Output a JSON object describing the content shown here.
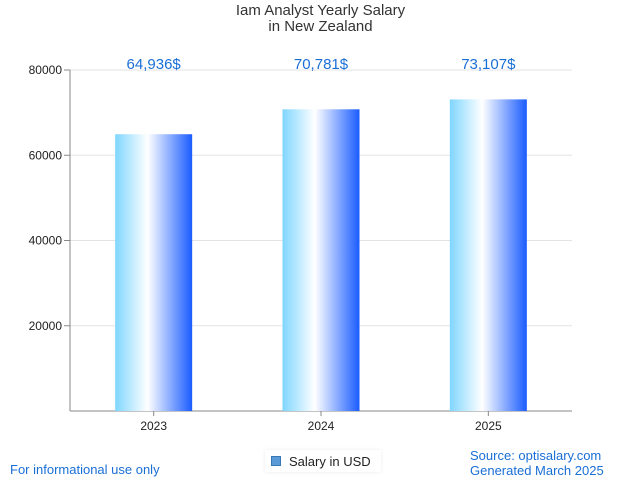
{
  "chart_data": {
    "type": "bar",
    "title_line1": "Iam Analyst Yearly Salary",
    "title_line2": "in New Zealand",
    "categories": [
      "2023",
      "2024",
      "2025"
    ],
    "series": [
      {
        "name": "Salary in USD",
        "values": [
          64936,
          70781,
          73107
        ]
      }
    ],
    "data_labels": [
      "64,936$",
      "70,781$",
      "73,107$"
    ],
    "y_ticks": [
      "20000",
      "40000",
      "60000",
      "80000"
    ],
    "ylim": [
      0,
      80000
    ],
    "grid": true,
    "legend_position": "bottom-center"
  },
  "footer": {
    "left": "For informational use only",
    "source": "Source: optisalary.com",
    "generated": "Generated March 2025"
  },
  "colors": {
    "bar_left": "#7fd6ff",
    "bar_mid": "#ffffff",
    "bar_right": "#1a5cff",
    "label": "#1a6fd6"
  }
}
